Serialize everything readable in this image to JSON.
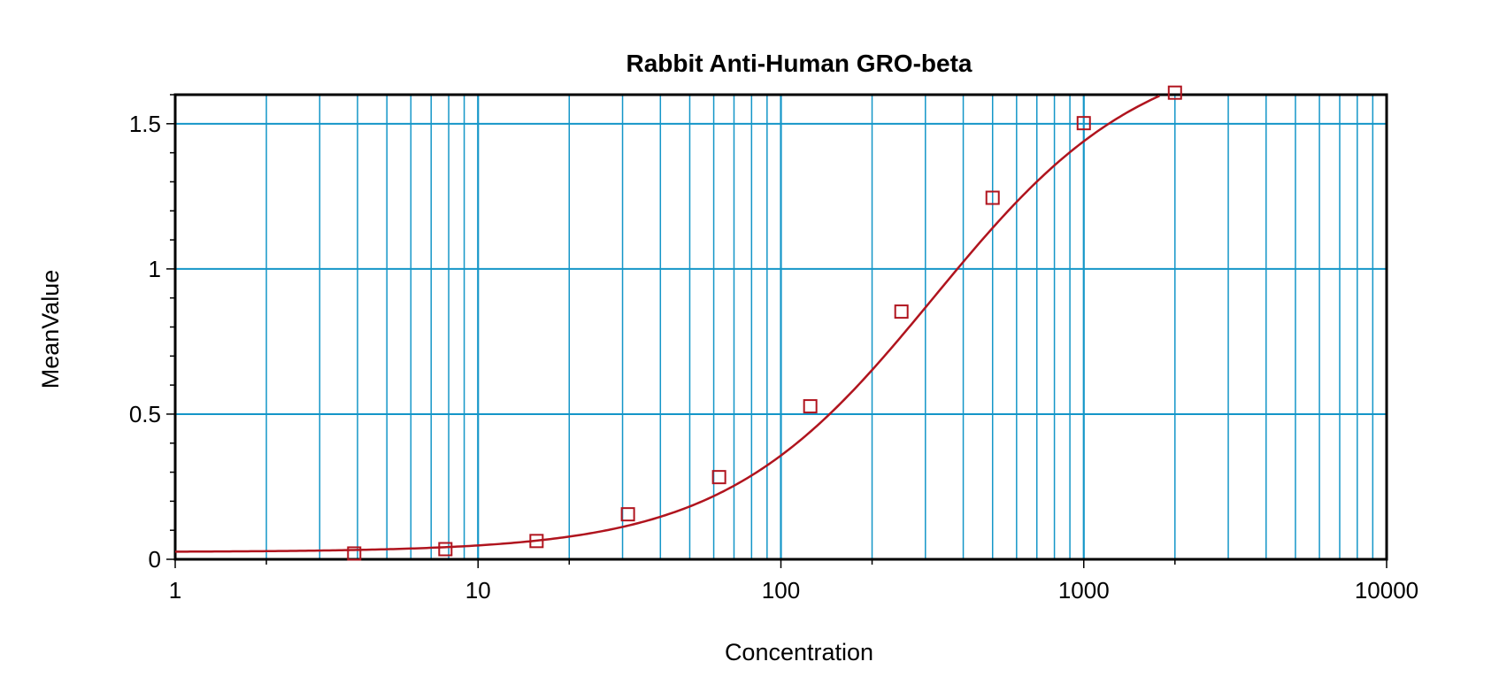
{
  "chart_data": {
    "type": "scatter",
    "title": "Rabbit Anti-Human GRO-beta",
    "xlabel": "Concentration",
    "ylabel": "MeanValue",
    "x_scale": "log",
    "xlim": [
      1,
      10000
    ],
    "ylim": [
      0,
      1.6
    ],
    "x_ticks": [
      1,
      10,
      100,
      1000,
      10000
    ],
    "x_tick_labels": [
      "1",
      "10",
      "100",
      "1000",
      "10000"
    ],
    "y_ticks": [
      0,
      0.5,
      1,
      1.5
    ],
    "y_tick_labels": [
      "0",
      "0.5",
      "1",
      "1.5"
    ],
    "grid": true,
    "legend": "none",
    "series": [
      {
        "x": [
          3.9,
          7.8,
          15.6,
          31.25,
          62.5,
          125,
          250,
          500,
          1000,
          2000
        ],
        "y": [
          0.02,
          0.035,
          0.063,
          0.155,
          0.283,
          0.527,
          0.853,
          1.245,
          1.502,
          1.607
        ]
      }
    ],
    "fit_curve": {
      "type": "4PL",
      "bottom": 0.025,
      "top": 1.78,
      "ec50": 320,
      "hill": 1.25
    },
    "colors": {
      "series": "#b0141e",
      "grid": "#1496c8",
      "frame": "#000000"
    }
  }
}
